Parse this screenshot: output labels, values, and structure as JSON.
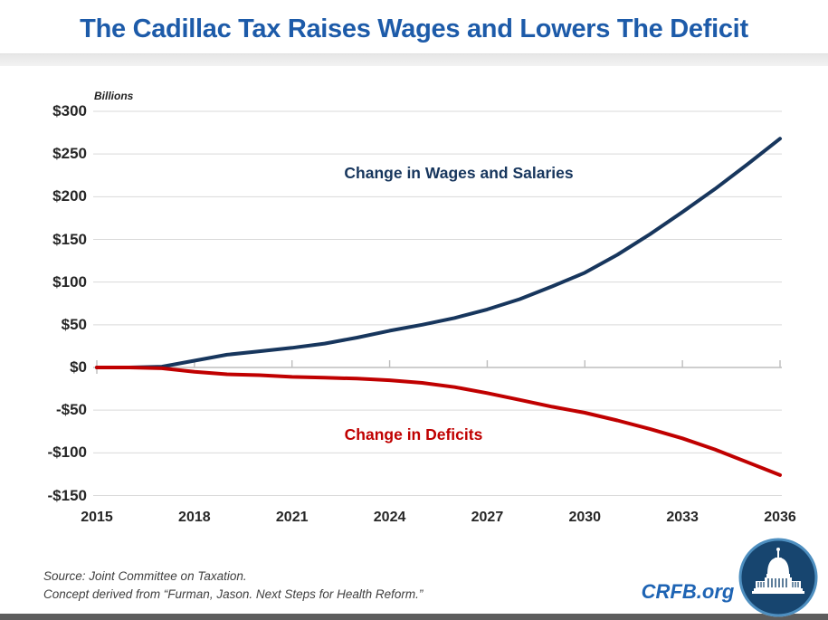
{
  "header": {
    "title": "The Cadillac Tax Raises Wages and Lowers The Deficit"
  },
  "chart_data": {
    "type": "line",
    "title": "The Cadillac Tax Raises Wages and Lowers The Deficit",
    "unit_label": "Billions",
    "xlabel": "",
    "ylabel": "Billions",
    "ylim": [
      -150,
      300
    ],
    "xlim": [
      2015,
      2036
    ],
    "grid": "horizontal",
    "legend_position": "inline-annotations",
    "x": [
      2015,
      2016,
      2017,
      2018,
      2019,
      2020,
      2021,
      2022,
      2023,
      2024,
      2025,
      2026,
      2027,
      2028,
      2029,
      2030,
      2031,
      2032,
      2033,
      2034,
      2035,
      2036
    ],
    "x_ticks": [
      {
        "year": 2015,
        "label": "2015"
      },
      {
        "year": 2018,
        "label": "2018"
      },
      {
        "year": 2021,
        "label": "2021"
      },
      {
        "year": 2024,
        "label": "2024"
      },
      {
        "year": 2027,
        "label": "2027"
      },
      {
        "year": 2030,
        "label": "2030"
      },
      {
        "year": 2033,
        "label": "2033"
      },
      {
        "year": 2036,
        "label": "2036"
      }
    ],
    "y_ticks": [
      {
        "value": 300,
        "label": "$300"
      },
      {
        "value": 250,
        "label": "$250"
      },
      {
        "value": 200,
        "label": "$200"
      },
      {
        "value": 150,
        "label": "$150"
      },
      {
        "value": 100,
        "label": "$100"
      },
      {
        "value": 50,
        "label": "$50"
      },
      {
        "value": 0,
        "label": "$0"
      },
      {
        "value": -50,
        "label": "-$50"
      },
      {
        "value": -100,
        "label": "-$100"
      },
      {
        "value": -150,
        "label": "-$150"
      }
    ],
    "series": [
      {
        "name": "Change in Wages and Salaries",
        "color": "#17365D",
        "values": [
          0,
          0,
          1,
          8,
          15,
          19,
          23,
          28,
          35,
          43,
          50,
          58,
          68,
          80,
          95,
          111,
          132,
          156,
          182,
          209,
          238,
          268
        ]
      },
      {
        "name": "Change in Deficits",
        "color": "#C00000",
        "values": [
          0,
          0,
          -1,
          -5,
          -8,
          -9,
          -11,
          -12,
          -13,
          -15,
          -18,
          -23,
          -30,
          -38,
          -46,
          -53,
          -62,
          -72,
          -83,
          -96,
          -111,
          -126
        ]
      }
    ]
  },
  "footer": {
    "source_line1": "Source: Joint Committee on Taxation.",
    "source_line2": "Concept derived from “Furman, Jason. Next Steps for Health Reform.”",
    "brand": "CRFB.org"
  },
  "colors": {
    "title_blue": "#1D5BA9",
    "wages_line": "#17365D",
    "deficits_line": "#C00000",
    "gridline": "#D9D9D9",
    "zero_axis": "#BDBDBD",
    "axis_text": "#262626",
    "header_bar": "#E7E7E7",
    "bottom_bar": "#5D5D5D",
    "logo_disk": "#17456F",
    "logo_ring": "#4E8FC0"
  }
}
